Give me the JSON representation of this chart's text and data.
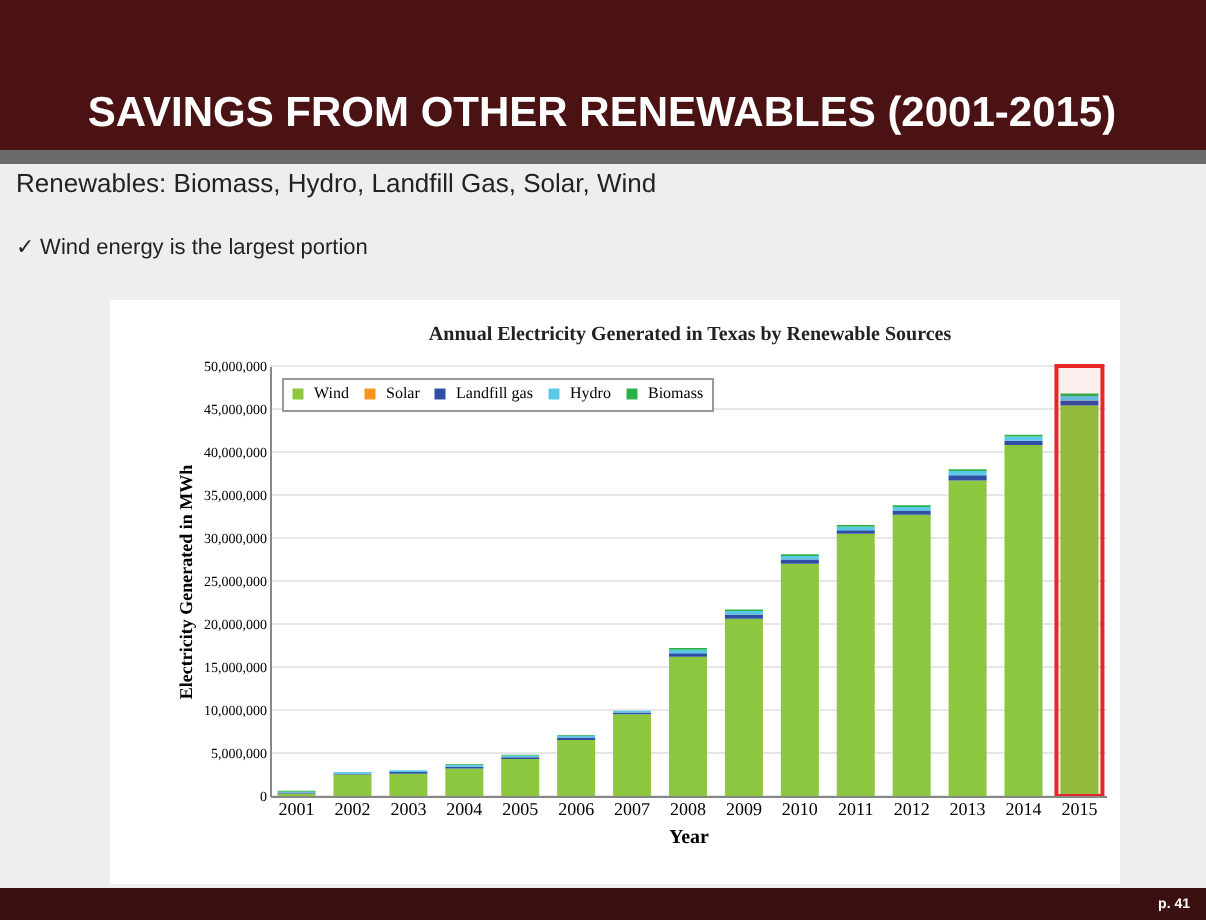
{
  "chart_data": {
    "type": "bar",
    "stacked": true,
    "title": "SAVINGS FROM OTHER RENEWABLES (2001-2015)",
    "subtitle": "Renewables: Biomass, Hydro, Landfill Gas, Solar, Wind",
    "annotations": [
      "✓ Wind energy is the largest portion",
      "Annual Electricity Generated in Texas by Renewable Sources",
      "p. 41"
    ],
    "xlabel": "Year",
    "ylabel": "Electricity Generated in MWh",
    "categories": [
      "2001",
      "2002",
      "2003",
      "2004",
      "2005",
      "2006",
      "2007",
      "2008",
      "2009",
      "2010",
      "2011",
      "2012",
      "2013",
      "2014",
      "2015"
    ],
    "series": [
      {
        "name": "Wind",
        "color": "#8dc63f",
        "values": [
          300000,
          2500000,
          2600000,
          3200000,
          4300000,
          6500000,
          9500000,
          16200000,
          20600000,
          27000000,
          30500000,
          32700000,
          36700000,
          40800000,
          45400000
        ]
      },
      {
        "name": "Solar",
        "color": "#f7941d",
        "values": [
          null,
          null,
          null,
          null,
          null,
          null,
          null,
          null,
          null,
          null,
          null,
          null,
          null,
          null,
          null
        ]
      },
      {
        "name": "Landfill gas",
        "color": "#2e4fa3",
        "values": [
          100000,
          100000,
          200000,
          200000,
          200000,
          300000,
          200000,
          400000,
          500000,
          500000,
          400000,
          500000,
          600000,
          500000,
          600000
        ]
      },
      {
        "name": "Hydro",
        "color": "#5bc8e8",
        "values": [
          100000,
          200000,
          200000,
          200000,
          200000,
          200000,
          200000,
          400000,
          400000,
          400000,
          400000,
          400000,
          500000,
          500000,
          500000
        ]
      },
      {
        "name": "Biomass",
        "color": "#2bb34a",
        "values": [
          100000,
          0,
          0,
          100000,
          100000,
          100000,
          0,
          200000,
          200000,
          200000,
          200000,
          200000,
          200000,
          200000,
          300000
        ]
      }
    ],
    "ylim": [
      0,
      50000000
    ],
    "yticks": [
      0,
      {
        "value": 5000000,
        "label": "5,000,000"
      },
      {
        "value": 10000000,
        "label": "10,000,000"
      },
      {
        "value": 15000000,
        "label": "15,000,000"
      },
      {
        "value": 20000000,
        "label": "20,000,000"
      },
      {
        "value": 25000000,
        "label": "25,000,000"
      },
      {
        "value": 30000000,
        "label": "30,000,000"
      },
      {
        "value": 35000000,
        "label": "35,000,000"
      },
      {
        "value": 40000000,
        "label": "40,000,000"
      },
      {
        "value": 45000000,
        "label": "45,000,000"
      },
      {
        "value": 50000000,
        "label": "50,000,000"
      }
    ],
    "grid": "y",
    "legend": "top left",
    "bands": [
      {
        "axis": "x",
        "from": "2015",
        "to": "2015",
        "color": "#e8262a"
      }
    ]
  }
}
